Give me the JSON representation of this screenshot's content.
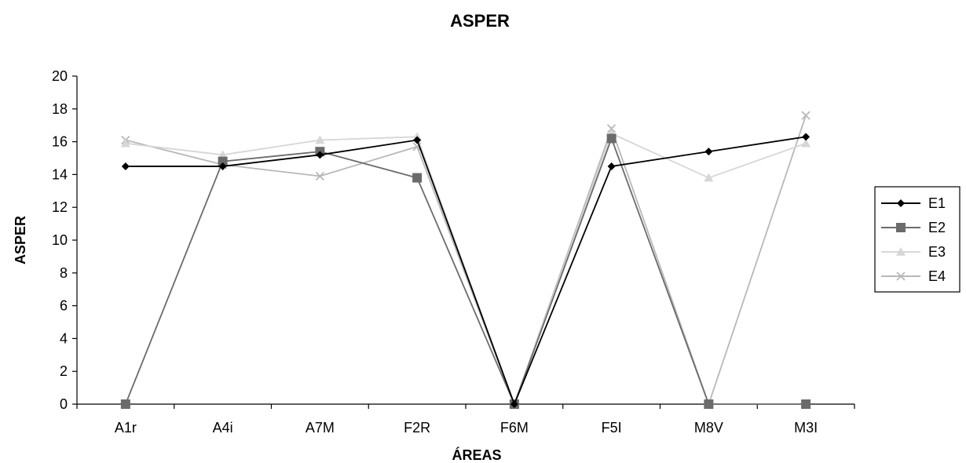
{
  "chart_data": {
    "type": "line",
    "title": "ASPER",
    "xlabel": "ÁREAS",
    "ylabel": "ASPER",
    "categories": [
      "A1r",
      "A4i",
      "A7M",
      "F2R",
      "F6M",
      "F5I",
      "M8V",
      "M3I"
    ],
    "ylim": [
      0,
      20
    ],
    "yticks": [
      0,
      2,
      4,
      6,
      8,
      10,
      12,
      14,
      16,
      18,
      20
    ],
    "grid": false,
    "legend_position": "right",
    "series": [
      {
        "name": "E1",
        "color": "#000000",
        "marker": "diamond",
        "values": [
          14.5,
          14.5,
          15.2,
          16.1,
          0,
          14.5,
          15.4,
          16.3
        ]
      },
      {
        "name": "E2",
        "color": "#6b6b6b",
        "marker": "square",
        "values": [
          0,
          14.8,
          15.4,
          13.8,
          0,
          16.2,
          0,
          0
        ]
      },
      {
        "name": "E3",
        "color": "#d6d6d6",
        "marker": "triangle",
        "values": [
          15.9,
          15.2,
          16.1,
          16.3,
          0,
          16.5,
          13.8,
          15.9
        ]
      },
      {
        "name": "E4",
        "color": "#b8b8b8",
        "marker": "x",
        "values": [
          16.1,
          14.6,
          13.9,
          15.7,
          0,
          16.8,
          0,
          17.6
        ]
      }
    ]
  }
}
